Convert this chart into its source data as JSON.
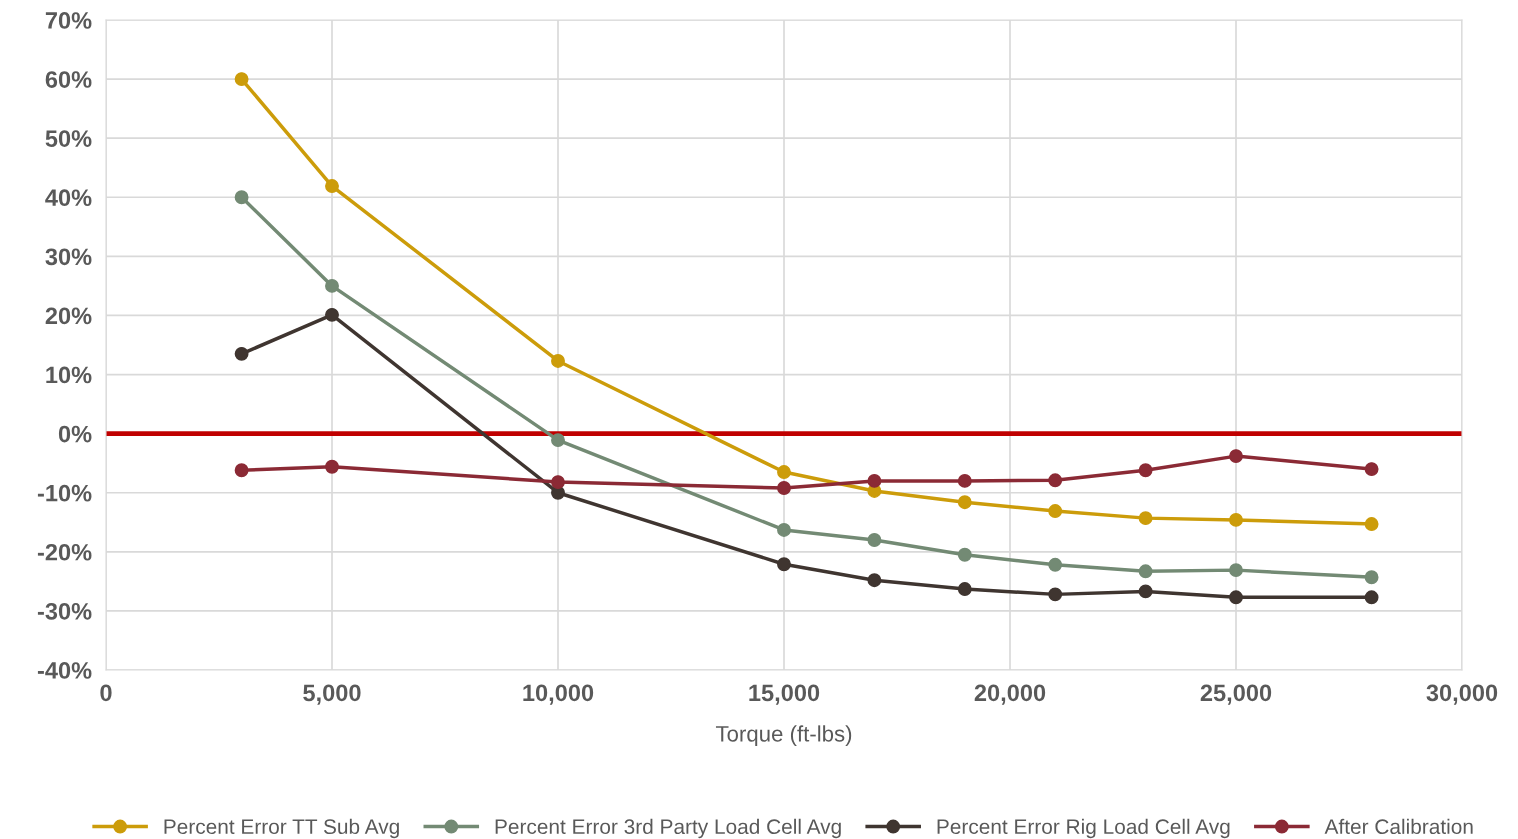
{
  "chart_data": {
    "type": "line",
    "xlabel": "Torque (ft-lbs)",
    "x": [
      3000,
      5000,
      10000,
      15000,
      17000,
      19000,
      21000,
      23000,
      25000,
      28000
    ],
    "series": [
      {
        "name": "Percent Error TT Sub Avg",
        "color": "#cc9c0a",
        "values": [
          60,
          41.9,
          12.3,
          -6.5,
          -9.7,
          -11.6,
          -13.1,
          -14.3,
          -14.6,
          -15.3
        ]
      },
      {
        "name": "Percent Error 3rd Party Load Cell Avg",
        "color": "#738a74",
        "values": [
          40,
          25,
          -1.1,
          -16.3,
          -18,
          -20.5,
          -22.2,
          -23.3,
          -23.1,
          -24.3
        ]
      },
      {
        "name": "Percent Error Rig Load Cell Avg",
        "color": "#3f3530",
        "values": [
          13.5,
          20.1,
          -10,
          -22.1,
          -24.8,
          -26.3,
          -27.2,
          -26.7,
          -27.7,
          -27.7
        ]
      },
      {
        "name": "After Calibration",
        "color": "#8b2a35",
        "values": [
          -6.2,
          -5.6,
          -8.2,
          -9.2,
          -8,
          -8,
          -7.9,
          -6.2,
          -3.8,
          -6
        ]
      }
    ],
    "xlim": [
      0,
      30000
    ],
    "xticks": [
      {
        "value": 0,
        "label": "0"
      },
      {
        "value": 5000,
        "label": "5,000"
      },
      {
        "value": 10000,
        "label": "10,000"
      },
      {
        "value": 15000,
        "label": "15,000"
      },
      {
        "value": 20000,
        "label": "20,000"
      },
      {
        "value": 25000,
        "label": "25,000"
      },
      {
        "value": 30000,
        "label": "30,000"
      }
    ],
    "ylim": [
      -40,
      70
    ],
    "yticks": [
      {
        "value": -40,
        "label": "-40%"
      },
      {
        "value": -30,
        "label": "-30%"
      },
      {
        "value": -20,
        "label": "-20%"
      },
      {
        "value": -10,
        "label": "-10%"
      },
      {
        "value": 0,
        "label": "0%"
      },
      {
        "value": 10,
        "label": "10%"
      },
      {
        "value": 20,
        "label": "20%"
      },
      {
        "value": 30,
        "label": "30%"
      },
      {
        "value": 40,
        "label": "40%"
      },
      {
        "value": 50,
        "label": "50%"
      },
      {
        "value": 60,
        "label": "60%"
      },
      {
        "value": 70,
        "label": "70%"
      }
    ],
    "ref_lines": [
      {
        "axis": "y",
        "value": 0,
        "color": "#c00000",
        "line_style": "solid"
      }
    ],
    "grid": true,
    "legend": "bottom",
    "marker": "circle",
    "line_style": "solid"
  }
}
